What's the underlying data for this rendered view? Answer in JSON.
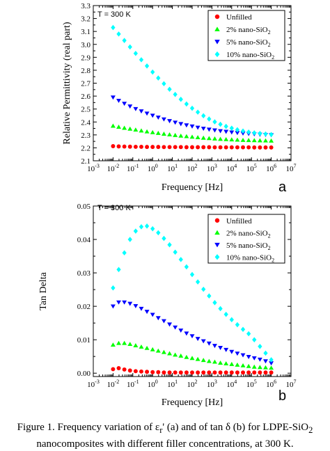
{
  "chart_data": [
    {
      "type": "scatter",
      "panel_label": "a",
      "annotation": "T = 300 K",
      "xlabel": "Frequency [Hz]",
      "ylabel": "Relative Permittivity (real part)",
      "xscale": "log",
      "xlim": [
        0.001,
        10000000
      ],
      "ylim": [
        2.1,
        3.3
      ],
      "x_ticks": [
        "-3",
        "-2",
        "-1",
        "0",
        "1",
        "2",
        "3",
        "4",
        "5",
        "6",
        "7"
      ],
      "y_ticks": [
        "2.1",
        "2.2",
        "2.3",
        "2.4",
        "2.5",
        "2.6",
        "2.7",
        "2.8",
        "2.9",
        "3.0",
        "3.1",
        "3.2",
        "3.3"
      ],
      "legend_position": "top-right",
      "series": [
        {
          "name": "Unfilled",
          "name_base": "Unfilled",
          "name_sub": "",
          "marker": "circle",
          "color": "#ff0000",
          "values": [
            2.213,
            2.211,
            2.21,
            2.209,
            2.208,
            2.208,
            2.207,
            2.207,
            2.207,
            2.206,
            2.206,
            2.206,
            2.206,
            2.205,
            2.205,
            2.205,
            2.205,
            2.205,
            2.204,
            2.204,
            2.204,
            2.204,
            2.204,
            2.204,
            2.204,
            2.203,
            2.203,
            2.203,
            2.203
          ]
        },
        {
          "name": "2% nano-SiO2",
          "name_base": "2% nano-SiO",
          "name_sub": "2",
          "marker": "triangle-up",
          "color": "#00ff00",
          "values": [
            2.37,
            2.362,
            2.354,
            2.347,
            2.34,
            2.333,
            2.326,
            2.32,
            2.314,
            2.308,
            2.303,
            2.298,
            2.293,
            2.289,
            2.285,
            2.281,
            2.277,
            2.274,
            2.271,
            2.268,
            2.266,
            2.264,
            2.262,
            2.26,
            2.259,
            2.258,
            2.257,
            2.256,
            2.255
          ]
        },
        {
          "name": "5% nano-SiO2",
          "name_base": "5% nano-SiO",
          "name_sub": "2",
          "marker": "triangle-down",
          "color": "#0000ff",
          "values": [
            2.59,
            2.565,
            2.542,
            2.521,
            2.501,
            2.483,
            2.466,
            2.45,
            2.435,
            2.421,
            2.408,
            2.396,
            2.385,
            2.375,
            2.366,
            2.357,
            2.349,
            2.342,
            2.336,
            2.33,
            2.325,
            2.32,
            2.316,
            2.312,
            2.309,
            2.306,
            2.303,
            2.301,
            2.299
          ]
        },
        {
          "name": "10% nano-SiO2",
          "name_base": "10% nano-SiO",
          "name_sub": "2",
          "marker": "diamond",
          "color": "#00ffff",
          "values": [
            3.13,
            3.08,
            3.03,
            2.98,
            2.93,
            2.881,
            2.833,
            2.786,
            2.74,
            2.696,
            2.653,
            2.613,
            2.575,
            2.539,
            2.506,
            2.476,
            2.448,
            2.423,
            2.401,
            2.382,
            2.366,
            2.352,
            2.34,
            2.33,
            2.322,
            2.316,
            2.311,
            2.307,
            2.303
          ]
        }
      ]
    },
    {
      "type": "scatter",
      "panel_label": "b",
      "annotation": "T = 300 K",
      "xlabel": "Frequency [Hz]",
      "ylabel": "Tan Delta",
      "xscale": "log",
      "xlim": [
        0.001,
        10000000
      ],
      "ylim": [
        -0.001,
        0.05
      ],
      "x_ticks": [
        "-3",
        "-2",
        "-1",
        "0",
        "1",
        "2",
        "3",
        "4",
        "5",
        "6",
        "7"
      ],
      "y_ticks": [
        "0.00",
        "0.01",
        "0.02",
        "0.03",
        "0.04",
        "0.05"
      ],
      "legend_position": "top-right",
      "series": [
        {
          "name": "Unfilled",
          "name_base": "Unfilled",
          "name_sub": "",
          "marker": "circle",
          "color": "#ff0000",
          "values": [
            0.0012,
            0.0015,
            0.0011,
            0.0008,
            0.0006,
            0.0005,
            0.0004,
            0.0003,
            0.0003,
            0.0002,
            0.0002,
            0.0002,
            0.0002,
            0.0002,
            0.0002,
            0.0002,
            0.0002,
            0.0002,
            0.0002,
            0.0002,
            0.0002,
            0.0002,
            0.0002,
            0.0002,
            0.0002,
            0.0002,
            0.0002,
            0.0002,
            0.0002
          ]
        },
        {
          "name": "2% nano-SiO2",
          "name_base": "2% nano-SiO",
          "name_sub": "2",
          "marker": "triangle-up",
          "color": "#00ff00",
          "values": [
            0.0085,
            0.009,
            0.009,
            0.0087,
            0.0083,
            0.0079,
            0.0075,
            0.0071,
            0.0067,
            0.0063,
            0.0059,
            0.0055,
            0.0052,
            0.0048,
            0.0045,
            0.0042,
            0.0039,
            0.0036,
            0.0034,
            0.0031,
            0.0029,
            0.0027,
            0.0025,
            0.0023,
            0.0021,
            0.0019,
            0.0018,
            0.0017,
            0.0016
          ]
        },
        {
          "name": "5% nano-SiO2",
          "name_base": "5% nano-SiO",
          "name_sub": "2",
          "marker": "triangle-down",
          "color": "#0000ff",
          "values": [
            0.02,
            0.0212,
            0.0212,
            0.0208,
            0.0201,
            0.0193,
            0.0184,
            0.0175,
            0.0165,
            0.0156,
            0.0146,
            0.0137,
            0.0128,
            0.0119,
            0.0111,
            0.0103,
            0.0096,
            0.0089,
            0.0082,
            0.0076,
            0.007,
            0.0064,
            0.0059,
            0.0054,
            0.0049,
            0.0045,
            0.0041,
            0.0036,
            0.003
          ]
        },
        {
          "name": "10% nano-SiO2",
          "name_base": "10% nano-SiO",
          "name_sub": "2",
          "marker": "diamond",
          "color": "#00ffff",
          "values": [
            0.0255,
            0.031,
            0.036,
            0.04,
            0.0425,
            0.0438,
            0.044,
            0.0432,
            0.042,
            0.0403,
            0.0384,
            0.0362,
            0.034,
            0.0318,
            0.0295,
            0.0273,
            0.0251,
            0.0231,
            0.0211,
            0.0193,
            0.0176,
            0.016,
            0.0145,
            0.0131,
            0.0118,
            0.01,
            0.008,
            0.006,
            0.004
          ]
        }
      ]
    }
  ],
  "caption": {
    "line1_a": "Figure 1.    Frequency variation of ε",
    "line1_b": "r",
    "line1_c": "' (a) and of tan δ (b) for LDPE-SiO",
    "line1_d": "2",
    "line2": "nanocomposites with different filler concentrations, at 300 K."
  }
}
